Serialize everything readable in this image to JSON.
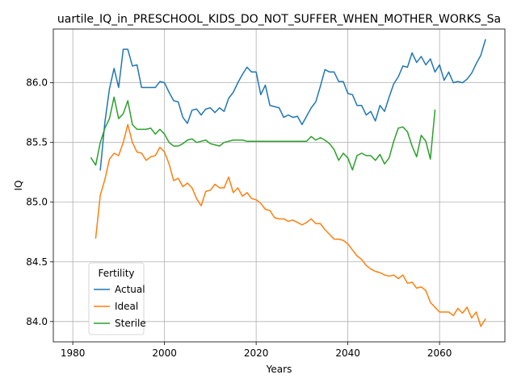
{
  "chart_data": {
    "type": "line",
    "title": "uartile_IQ_in_PRESCHOOL_KIDS_DO_NOT_SUFFER_WHEN_MOTHER_WORKS_Sa",
    "xlabel": "Years",
    "ylabel": "IQ",
    "xlim": [
      1975.75,
      2074.25
    ],
    "ylim": [
      83.83,
      86.45
    ],
    "xticks": [
      1980,
      2000,
      2020,
      2040,
      2060
    ],
    "xtick_labels": [
      "1980",
      "2000",
      "2020",
      "2040",
      "2060"
    ],
    "yticks": [
      84.0,
      84.5,
      85.0,
      85.5,
      86.0
    ],
    "ytick_labels": [
      "84.0",
      "84.5",
      "85.0",
      "85.5",
      "86.0"
    ],
    "grid": true,
    "legend": {
      "title": "Fertility",
      "placement": "lower-left"
    },
    "series": [
      {
        "name": "Actual",
        "color": "#1f77b4",
        "x": [
          1986,
          1987,
          1988,
          1989,
          1990,
          1991,
          1992,
          1993,
          1994,
          1995,
          1996,
          1997,
          1998,
          1999,
          2000,
          2001,
          2002,
          2003,
          2004,
          2005,
          2006,
          2007,
          2008,
          2009,
          2010,
          2011,
          2012,
          2013,
          2014,
          2015,
          2016,
          2017,
          2018,
          2019,
          2020,
          2021,
          2022,
          2023,
          2024,
          2025,
          2026,
          2027,
          2028,
          2029,
          2030,
          2031,
          2032,
          2033,
          2034,
          2035,
          2036,
          2037,
          2038,
          2039,
          2040,
          2041,
          2042,
          2043,
          2044,
          2045,
          2046,
          2047,
          2048,
          2049,
          2050,
          2051,
          2052,
          2053,
          2054,
          2055,
          2056,
          2057,
          2058,
          2059,
          2060,
          2061,
          2062,
          2063,
          2064,
          2065,
          2066,
          2067,
          2068,
          2069,
          2070
        ],
        "values": [
          85.27,
          85.67,
          85.95,
          86.12,
          85.96,
          86.28,
          86.28,
          86.14,
          86.15,
          85.96,
          85.96,
          85.96,
          85.96,
          86.01,
          86.0,
          85.92,
          85.85,
          85.84,
          85.71,
          85.66,
          85.77,
          85.78,
          85.73,
          85.78,
          85.79,
          85.75,
          85.79,
          85.76,
          85.87,
          85.92,
          86.0,
          86.07,
          86.13,
          86.09,
          86.09,
          85.9,
          85.98,
          85.81,
          85.8,
          85.79,
          85.71,
          85.73,
          85.71,
          85.72,
          85.65,
          85.72,
          85.79,
          85.84,
          85.97,
          86.11,
          86.09,
          86.09,
          86.01,
          86.01,
          85.91,
          85.9,
          85.81,
          85.81,
          85.73,
          85.76,
          85.68,
          85.81,
          85.76,
          85.88,
          85.99,
          86.05,
          86.14,
          86.13,
          86.25,
          86.17,
          86.22,
          86.15,
          86.2,
          86.09,
          86.15,
          86.02,
          86.09,
          86.0,
          86.01,
          86.0,
          86.03,
          86.08,
          86.16,
          86.23,
          86.36
        ]
      },
      {
        "name": "Ideal",
        "color": "#ff7f0e",
        "x": [
          1985,
          1986,
          1987,
          1988,
          1989,
          1990,
          1991,
          1992,
          1993,
          1994,
          1995,
          1996,
          1997,
          1998,
          1999,
          2000,
          2001,
          2002,
          2003,
          2004,
          2005,
          2006,
          2007,
          2008,
          2009,
          2010,
          2011,
          2012,
          2013,
          2014,
          2015,
          2016,
          2017,
          2018,
          2019,
          2020,
          2021,
          2022,
          2023,
          2024,
          2025,
          2026,
          2027,
          2028,
          2029,
          2030,
          2031,
          2032,
          2033,
          2034,
          2035,
          2036,
          2037,
          2038,
          2039,
          2040,
          2041,
          2042,
          2043,
          2044,
          2045,
          2046,
          2047,
          2048,
          2049,
          2050,
          2051,
          2052,
          2053,
          2054,
          2055,
          2056,
          2057,
          2058,
          2059,
          2060,
          2061,
          2062,
          2063,
          2064,
          2065,
          2066,
          2067,
          2068,
          2069,
          2070
        ],
        "values": [
          84.7,
          85.06,
          85.19,
          85.36,
          85.41,
          85.39,
          85.5,
          85.65,
          85.5,
          85.42,
          85.41,
          85.35,
          85.38,
          85.39,
          85.46,
          85.42,
          85.32,
          85.18,
          85.2,
          85.13,
          85.16,
          85.12,
          85.03,
          84.97,
          85.09,
          85.1,
          85.15,
          85.12,
          85.12,
          85.21,
          85.08,
          85.12,
          85.05,
          85.08,
          85.03,
          85.02,
          84.99,
          84.94,
          84.93,
          84.87,
          84.86,
          84.86,
          84.84,
          84.85,
          84.83,
          84.81,
          84.83,
          84.86,
          84.82,
          84.82,
          84.77,
          84.73,
          84.69,
          84.69,
          84.68,
          84.65,
          84.6,
          84.55,
          84.52,
          84.47,
          84.44,
          84.42,
          84.41,
          84.39,
          84.38,
          84.39,
          84.36,
          84.39,
          84.32,
          84.33,
          84.28,
          84.29,
          84.26,
          84.16,
          84.12,
          84.08,
          84.08,
          84.08,
          84.05,
          84.11,
          84.07,
          84.12,
          84.03,
          84.08,
          83.96,
          84.02
        ]
      },
      {
        "name": "Sterile",
        "color": "#2ca02c",
        "x": [
          1984,
          1985,
          1986,
          1987,
          1988,
          1989,
          1990,
          1991,
          1992,
          1993,
          1994,
          1995,
          1996,
          1997,
          1998,
          1999,
          2000,
          2001,
          2002,
          2003,
          2004,
          2005,
          2006,
          2007,
          2008,
          2009,
          2010,
          2011,
          2012,
          2013,
          2014,
          2015,
          2016,
          2017,
          2018,
          2019,
          2020,
          2021,
          2022,
          2023,
          2024,
          2025,
          2026,
          2027,
          2028,
          2029,
          2030,
          2031,
          2032,
          2033,
          2034,
          2035,
          2036,
          2037,
          2038,
          2039,
          2040,
          2041,
          2042,
          2043,
          2044,
          2045,
          2046,
          2047,
          2048,
          2049,
          2050,
          2051,
          2052,
          2053,
          2054,
          2055,
          2056,
          2057,
          2058,
          2059
        ],
        "values": [
          85.37,
          85.31,
          85.5,
          85.62,
          85.7,
          85.88,
          85.7,
          85.74,
          85.85,
          85.65,
          85.61,
          85.61,
          85.61,
          85.62,
          85.57,
          85.61,
          85.57,
          85.5,
          85.47,
          85.47,
          85.49,
          85.52,
          85.53,
          85.5,
          85.51,
          85.52,
          85.49,
          85.48,
          85.47,
          85.5,
          85.51,
          85.52,
          85.52,
          85.52,
          85.51,
          85.51,
          85.51,
          85.51,
          85.51,
          85.51,
          85.51,
          85.51,
          85.51,
          85.51,
          85.51,
          85.51,
          85.51,
          85.51,
          85.55,
          85.52,
          85.54,
          85.52,
          85.49,
          85.44,
          85.35,
          85.41,
          85.37,
          85.27,
          85.39,
          85.41,
          85.39,
          85.39,
          85.35,
          85.4,
          85.32,
          85.37,
          85.51,
          85.62,
          85.63,
          85.59,
          85.47,
          85.38,
          85.56,
          85.51,
          85.36,
          85.77
        ]
      }
    ]
  }
}
